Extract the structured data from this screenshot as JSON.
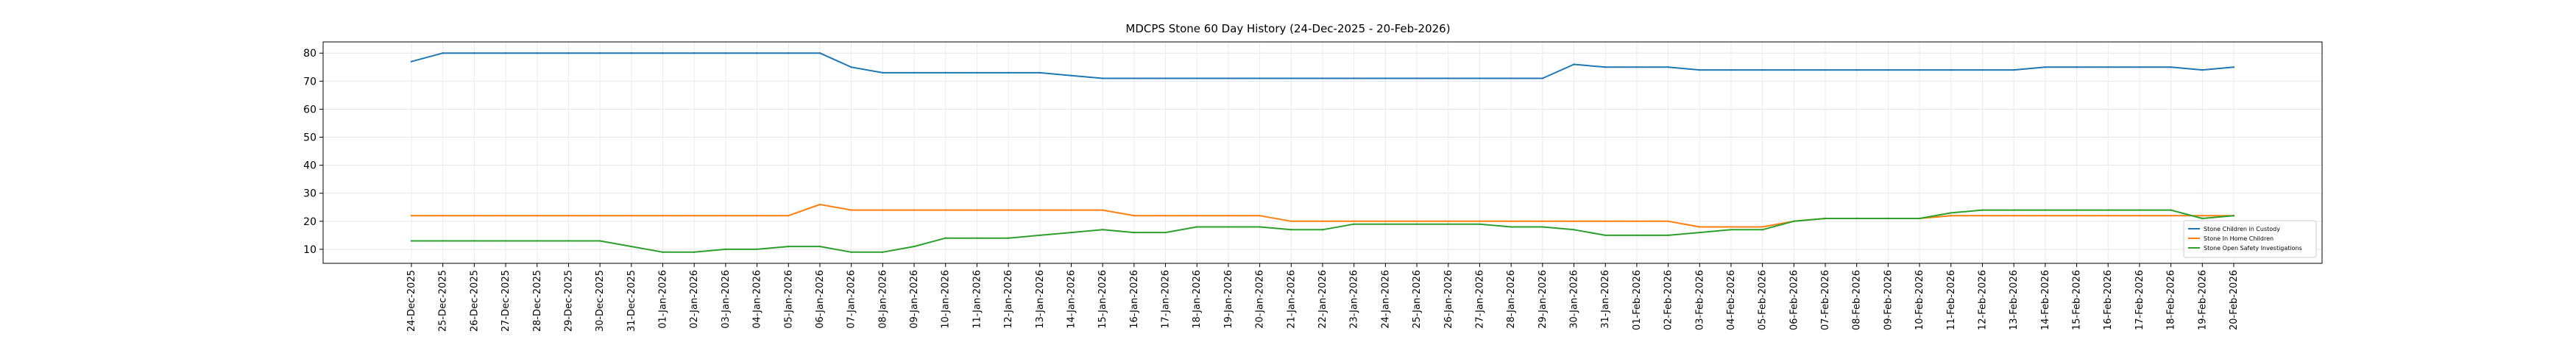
{
  "chart_data": {
    "type": "line",
    "title": "MDCPS Stone 60 Day History (24-Dec-2025 - 20-Feb-2026)",
    "xlabel": "",
    "ylabel": "",
    "ylim": [
      5,
      84
    ],
    "yticks": [
      10,
      20,
      30,
      40,
      50,
      60,
      70,
      80
    ],
    "grid": true,
    "legend_position": "lower-right",
    "categories": [
      "24-Dec-2025",
      "25-Dec-2025",
      "26-Dec-2025",
      "27-Dec-2025",
      "28-Dec-2025",
      "29-Dec-2025",
      "30-Dec-2025",
      "31-Dec-2025",
      "01-Jan-2026",
      "02-Jan-2026",
      "03-Jan-2026",
      "04-Jan-2026",
      "05-Jan-2026",
      "06-Jan-2026",
      "07-Jan-2026",
      "08-Jan-2026",
      "09-Jan-2026",
      "10-Jan-2026",
      "11-Jan-2026",
      "12-Jan-2026",
      "13-Jan-2026",
      "14-Jan-2026",
      "15-Jan-2026",
      "16-Jan-2026",
      "17-Jan-2026",
      "18-Jan-2026",
      "19-Jan-2026",
      "20-Jan-2026",
      "21-Jan-2026",
      "22-Jan-2026",
      "23-Jan-2026",
      "24-Jan-2026",
      "25-Jan-2026",
      "26-Jan-2026",
      "27-Jan-2026",
      "28-Jan-2026",
      "29-Jan-2026",
      "30-Jan-2026",
      "31-Jan-2026",
      "01-Feb-2026",
      "02-Feb-2026",
      "03-Feb-2026",
      "04-Feb-2026",
      "05-Feb-2026",
      "06-Feb-2026",
      "07-Feb-2026",
      "08-Feb-2026",
      "09-Feb-2026",
      "10-Feb-2026",
      "11-Feb-2026",
      "12-Feb-2026",
      "13-Feb-2026",
      "14-Feb-2026",
      "15-Feb-2026",
      "16-Feb-2026",
      "17-Feb-2026",
      "18-Feb-2026",
      "19-Feb-2026",
      "20-Feb-2026"
    ],
    "series": [
      {
        "name": "Stone Children in Custody",
        "color": "#1f77b4",
        "values": [
          77,
          80,
          80,
          80,
          80,
          80,
          80,
          80,
          80,
          80,
          80,
          80,
          80,
          80,
          75,
          73,
          73,
          73,
          73,
          73,
          73,
          72,
          71,
          71,
          71,
          71,
          71,
          71,
          71,
          71,
          71,
          71,
          71,
          71,
          71,
          71,
          71,
          76,
          75,
          75,
          75,
          74,
          74,
          74,
          74,
          74,
          74,
          74,
          74,
          74,
          74,
          74,
          75,
          75,
          75,
          75,
          75,
          74,
          75
        ]
      },
      {
        "name": "Stone In Home Children",
        "color": "#ff7f0e",
        "values": [
          22,
          22,
          22,
          22,
          22,
          22,
          22,
          22,
          22,
          22,
          22,
          22,
          22,
          26,
          24,
          24,
          24,
          24,
          24,
          24,
          24,
          24,
          24,
          22,
          22,
          22,
          22,
          22,
          20,
          20,
          20,
          20,
          20,
          20,
          20,
          20,
          20,
          20,
          20,
          20,
          20,
          18,
          18,
          18,
          20,
          21,
          21,
          21,
          21,
          22,
          22,
          22,
          22,
          22,
          22,
          22,
          22,
          22,
          22
        ]
      },
      {
        "name": "Stone Open Safety Investigations",
        "color": "#2ca02c",
        "values": [
          13,
          13,
          13,
          13,
          13,
          13,
          13,
          11,
          9,
          9,
          10,
          10,
          11,
          11,
          9,
          9,
          11,
          14,
          14,
          14,
          15,
          16,
          17,
          16,
          16,
          18,
          18,
          18,
          17,
          17,
          19,
          19,
          19,
          19,
          19,
          18,
          18,
          17,
          15,
          15,
          15,
          16,
          17,
          17,
          20,
          21,
          21,
          21,
          21,
          23,
          24,
          24,
          24,
          24,
          24,
          24,
          24,
          21,
          22
        ]
      }
    ]
  }
}
